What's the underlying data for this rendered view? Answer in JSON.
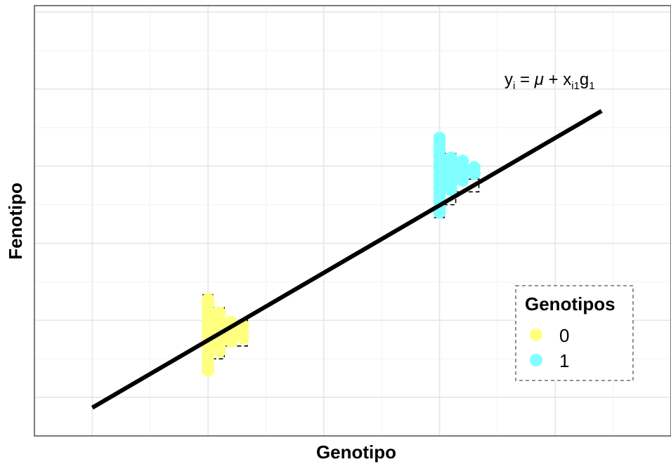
{
  "chart_data": {
    "type": "scatter",
    "title": "",
    "xlabel": "Genotipo",
    "ylabel": "Fenotipo",
    "grid": true,
    "legend": {
      "title": "Genotipos",
      "position": "bottom-right",
      "entries": [
        {
          "label": "0",
          "color": "#FFFF80"
        },
        {
          "label": "1",
          "color": "#7FFFFF"
        }
      ]
    },
    "annotation": {
      "base": "y",
      "sub_i": "i",
      "eq": " = ",
      "mu": "μ",
      "plus": " + x",
      "sub_i1": "i1",
      "g": "g",
      "sub_1": "1"
    },
    "series": [
      {
        "name": "0",
        "color": "#FFFF80",
        "columns": [
          {
            "x": 0.0,
            "y": [
              -3.9,
              -3.6,
              -3.15,
              -2.65,
              -2.15,
              -1.65,
              -1.15,
              -0.65,
              -0.15,
              0.35,
              0.85,
              1.35,
              1.65
            ]
          },
          {
            "x": 0.1,
            "y": [
              -2.4,
              -1.9,
              -1.4,
              -0.9,
              -0.4,
              0.1,
              0.6
            ]
          },
          {
            "x": 0.2,
            "y": [
              -1.65,
              -1.15,
              -0.65,
              -0.15
            ]
          },
          {
            "x": 0.3,
            "y": [
              -1.4,
              -0.9,
              -0.4
            ]
          }
        ]
      },
      {
        "name": "1",
        "color": "#7FFFFF",
        "columns": [
          {
            "x": 2.0,
            "y": [
              8.4,
              8.75,
              9.25,
              9.75,
              10.25,
              10.75,
              11.25,
              11.75,
              12.25,
              12.75,
              13.25,
              13.75,
              14.2
            ]
          },
          {
            "x": 2.1,
            "y": [
              10.15,
              10.65,
              11.15,
              11.65,
              12.15,
              12.65
            ]
          },
          {
            "x": 2.2,
            "y": [
              10.9,
              11.4,
              11.9,
              12.4
            ]
          },
          {
            "x": 2.3,
            "y": [
              11.4,
              11.9
            ]
          }
        ]
      }
    ],
    "histogram_outlines": [
      {
        "group": "0",
        "x_center": 0.0,
        "bins": [
          {
            "y0": -4.0,
            "y1": -3.0,
            "width": 0.04
          },
          {
            "y0": -3.0,
            "y1": -2.0,
            "width": 0.14
          },
          {
            "y0": -2.0,
            "y1": -1.0,
            "width": 0.34
          },
          {
            "y0": -1.0,
            "y1": 0.0,
            "width": 0.34
          },
          {
            "y0": 0.0,
            "y1": 1.0,
            "width": 0.14
          },
          {
            "y0": 1.0,
            "y1": 2.0,
            "width": 0.04
          }
        ]
      },
      {
        "group": "1",
        "x_center": 2.0,
        "bins": [
          {
            "y0": 8.0,
            "y1": 9.0,
            "width": 0.04
          },
          {
            "y0": 9.0,
            "y1": 10.0,
            "width": 0.14
          },
          {
            "y0": 10.0,
            "y1": 11.0,
            "width": 0.34
          },
          {
            "y0": 11.0,
            "y1": 12.0,
            "width": 0.34
          },
          {
            "y0": 12.0,
            "y1": 13.0,
            "width": 0.14
          },
          {
            "y0": 13.0,
            "y1": 14.0,
            "width": 0.04
          }
        ]
      }
    ],
    "regression_line": {
      "x0": -1.0,
      "y0": -6.8,
      "x1": 3.4,
      "y1": 16.3
    },
    "xlim": [
      -1.5,
      4.0
    ],
    "ylim": [
      -9.0,
      24.5
    ],
    "x_gridlines_major": [
      -1,
      0,
      1,
      2,
      3,
      4
    ],
    "x_gridlines_minor": [
      -0.5,
      0.5,
      1.5,
      2.5,
      3.5
    ],
    "y_gridlines_major": [
      -6,
      0,
      6,
      12,
      18,
      24
    ],
    "y_gridlines_minor": [
      -3,
      3,
      9,
      15,
      21
    ]
  }
}
